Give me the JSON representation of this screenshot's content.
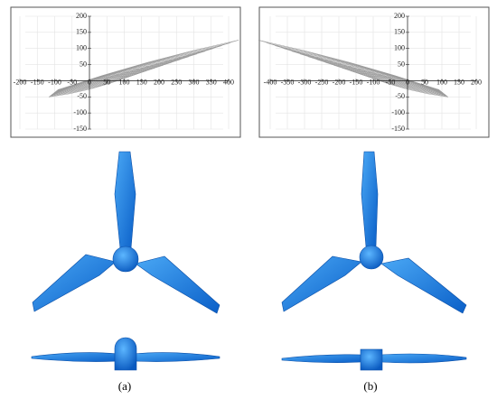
{
  "panels": [
    {
      "label": "(a)",
      "xlim": [
        -200,
        400
      ],
      "ylim": [
        -150,
        200
      ],
      "xticks": [
        -200,
        -150,
        -100,
        -50,
        0,
        50,
        100,
        150,
        200,
        250,
        300,
        350,
        400
      ],
      "yticks": [
        -150,
        -100,
        -50,
        50,
        100,
        150,
        200
      ]
    },
    {
      "label": "(b)",
      "xlim": [
        -400,
        200
      ],
      "ylim": [
        -150,
        200
      ],
      "xticks": [
        -400,
        -350,
        -300,
        -250,
        -200,
        -150,
        -100,
        -50,
        0,
        50,
        100,
        150,
        200
      ],
      "yticks": [
        -150,
        -100,
        -50,
        50,
        100,
        150,
        200
      ]
    }
  ]
}
